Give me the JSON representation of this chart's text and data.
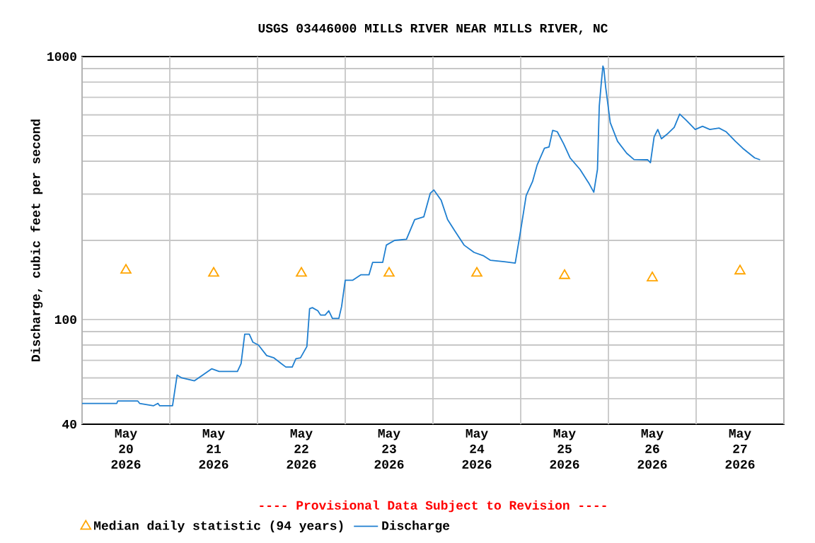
{
  "chart_data": {
    "type": "line",
    "title": "USGS 03446000 MILLS RIVER NEAR MILLS RIVER, NC",
    "ylabel": "Discharge, cubic feet per second",
    "annotations": [
      "---- Provisional Data Subject to Revision ----"
    ],
    "log": "y",
    "grid": true,
    "legend": "bottom",
    "xlim": [
      "2026-05-20T00:00",
      "2026-05-28T00:00"
    ],
    "xticks": [
      {
        "value": "2026-05-20T00:00",
        "label": null
      },
      {
        "value": "2026-05-20T12:00",
        "label": "May 20 2026"
      },
      {
        "value": "2026-05-21T00:00",
        "label": null
      },
      {
        "value": "2026-05-21T12:00",
        "label": "May 21 2026"
      },
      {
        "value": "2026-05-22T00:00",
        "label": null
      },
      {
        "value": "2026-05-22T12:00",
        "label": "May 22 2026"
      },
      {
        "value": "2026-05-23T00:00",
        "label": null
      },
      {
        "value": "2026-05-23T12:00",
        "label": "May 23 2026"
      },
      {
        "value": "2026-05-24T00:00",
        "label": null
      },
      {
        "value": "2026-05-24T12:00",
        "label": "May 24 2026"
      },
      {
        "value": "2026-05-25T00:00",
        "label": null
      },
      {
        "value": "2026-05-25T12:00",
        "label": "May 25 2026"
      },
      {
        "value": "2026-05-26T00:00",
        "label": null
      },
      {
        "value": "2026-05-26T12:00",
        "label": "May 26 2026"
      },
      {
        "value": "2026-05-27T00:00",
        "label": null
      },
      {
        "value": "2026-05-27T12:00",
        "label": "May 27 2026"
      },
      {
        "value": "2026-05-28T00:00",
        "label": null
      }
    ],
    "ylim": [
      40,
      1000
    ],
    "yticks": [
      40,
      {
        "value": 50,
        "label": null
      },
      {
        "value": 60,
        "label": null
      },
      {
        "value": 70,
        "label": null
      },
      {
        "value": 80,
        "label": null
      },
      {
        "value": 90,
        "label": null
      },
      100,
      {
        "value": 200,
        "label": null
      },
      {
        "value": 300,
        "label": null
      },
      {
        "value": 400,
        "label": null
      },
      {
        "value": 500,
        "label": null
      },
      {
        "value": 600,
        "label": null
      },
      {
        "value": 700,
        "label": null
      },
      {
        "value": 800,
        "label": null
      },
      {
        "value": 900,
        "label": null
      },
      1000
    ],
    "series": [
      {
        "name": "Median daily statistic (94 years)",
        "type": "scatter",
        "marker": "triangle",
        "color": "#ffa500",
        "x": [
          "2026-05-20T12:00",
          "2026-05-21T12:00",
          "2026-05-22T12:00",
          "2026-05-23T12:00",
          "2026-05-24T12:00",
          "2026-05-25T12:00",
          "2026-05-26T12:00",
          "2026-05-27T12:00"
        ],
        "values": [
          154,
          150,
          150,
          150,
          150,
          147,
          144,
          153
        ]
      },
      {
        "name": "Discharge",
        "marker": "none",
        "line_style": "solid",
        "color": "#1f7fd0",
        "x": [
          "2026-05-20T00:00",
          "2026-05-20T09:30",
          "2026-05-20T09:45",
          "2026-05-20T15:15",
          "2026-05-20T15:45",
          "2026-05-20T19:30",
          "2026-05-20T20:45",
          "2026-05-20T21:15",
          "2026-05-21T00:45",
          "2026-05-21T02:00",
          "2026-05-21T03:15",
          "2026-05-21T06:45",
          "2026-05-21T09:00",
          "2026-05-21T11:30",
          "2026-05-21T13:30",
          "2026-05-21T18:30",
          "2026-05-21T19:30",
          "2026-05-21T20:30",
          "2026-05-21T21:45",
          "2026-05-21T22:45",
          "2026-05-22T00:15",
          "2026-05-22T02:30",
          "2026-05-22T04:30",
          "2026-05-22T06:30",
          "2026-05-22T07:45",
          "2026-05-22T09:30",
          "2026-05-22T10:30",
          "2026-05-22T11:45",
          "2026-05-22T13:30",
          "2026-05-22T14:15",
          "2026-05-22T15:00",
          "2026-05-22T16:30",
          "2026-05-22T17:15",
          "2026-05-22T18:30",
          "2026-05-22T19:30",
          "2026-05-22T20:30",
          "2026-05-22T22:15",
          "2026-05-22T23:00",
          "2026-05-23T00:00",
          "2026-05-23T02:00",
          "2026-05-23T04:15",
          "2026-05-23T06:30",
          "2026-05-23T07:30",
          "2026-05-23T10:15",
          "2026-05-23T11:15",
          "2026-05-23T13:30",
          "2026-05-23T16:45",
          "2026-05-23T19:00",
          "2026-05-23T21:30",
          "2026-05-23T23:15",
          "2026-05-24T00:15",
          "2026-05-24T02:15",
          "2026-05-24T04:00",
          "2026-05-24T06:00",
          "2026-05-24T08:30",
          "2026-05-24T11:15",
          "2026-05-24T13:45",
          "2026-05-24T15:45",
          "2026-05-24T19:30",
          "2026-05-24T22:30",
          "2026-05-24T23:45",
          "2026-05-25T01:30",
          "2026-05-25T03:15",
          "2026-05-25T04:30",
          "2026-05-25T06:30",
          "2026-05-25T07:45",
          "2026-05-25T08:45",
          "2026-05-25T10:00",
          "2026-05-25T11:45",
          "2026-05-25T13:30",
          "2026-05-25T16:15",
          "2026-05-25T18:45",
          "2026-05-25T20:00",
          "2026-05-25T21:00",
          "2026-05-25T21:30",
          "2026-05-25T22:00",
          "2026-05-25T22:30",
          "2026-05-25T22:45",
          "2026-05-25T23:15",
          "2026-05-26T00:30",
          "2026-05-26T02:30",
          "2026-05-26T05:00",
          "2026-05-26T07:00",
          "2026-05-26T10:45",
          "2026-05-26T11:30",
          "2026-05-26T12:30",
          "2026-05-26T13:30",
          "2026-05-26T14:30",
          "2026-05-26T16:00",
          "2026-05-26T18:00",
          "2026-05-26T19:30",
          "2026-05-26T21:15",
          "2026-05-26T23:45",
          "2026-05-27T01:45",
          "2026-05-27T03:45",
          "2026-05-27T06:15",
          "2026-05-27T08:15",
          "2026-05-27T10:45",
          "2026-05-27T12:45",
          "2026-05-27T16:00",
          "2026-05-27T17:30"
        ],
        "values": [
          48,
          48,
          49,
          49,
          48,
          47,
          48,
          47,
          47,
          61.5,
          60,
          58.5,
          61.5,
          65,
          63.5,
          63.5,
          68,
          88,
          88,
          82,
          80,
          73,
          71.5,
          68,
          66,
          66,
          71,
          71.5,
          79,
          110,
          111,
          108,
          104,
          104,
          108,
          101,
          101,
          112,
          141,
          141,
          148,
          148,
          165,
          165,
          192,
          200,
          202,
          240,
          246,
          302,
          311,
          284,
          240,
          217,
          192,
          180,
          175,
          168,
          166,
          164,
          208,
          296,
          335,
          387,
          448,
          453,
          524,
          518,
          466,
          412,
          372,
          328,
          305,
          372,
          648,
          780,
          920,
          900,
          765,
          561,
          476,
          429,
          406,
          405,
          395,
          495,
          528,
          487,
          506,
          538,
          604,
          573,
          528,
          543,
          528,
          535,
          517,
          476,
          448,
          412,
          405
        ]
      }
    ]
  }
}
